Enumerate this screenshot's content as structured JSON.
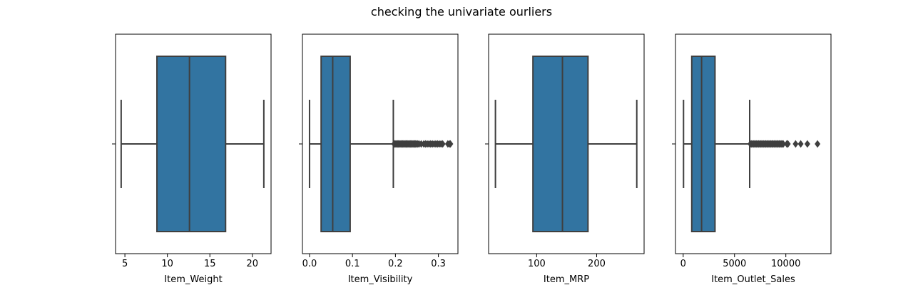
{
  "figure": {
    "suptitle": "checking the univariate ourliers"
  },
  "colors": {
    "box_fill": "#3274a1",
    "line": "#3f3f3f",
    "axes": "#000000",
    "background": "#ffffff"
  },
  "chart_data": [
    {
      "type": "box",
      "xlabel": "Item_Weight",
      "xlim": [
        3.9,
        22.2
      ],
      "xticks": [
        5,
        10,
        15,
        20
      ],
      "xtick_labels": [
        "5",
        "10",
        "15",
        "20"
      ],
      "whisker_low": 4.56,
      "q1": 8.77,
      "median": 12.6,
      "q3": 16.85,
      "whisker_high": 21.35,
      "outliers": []
    },
    {
      "type": "box",
      "xlabel": "Item_Visibility",
      "xlim": [
        -0.0165,
        0.3455
      ],
      "xticks": [
        0.0,
        0.1,
        0.2,
        0.3
      ],
      "xtick_labels": [
        "0.0",
        "0.1",
        "0.2",
        "0.3"
      ],
      "whisker_low": 0.0,
      "q1": 0.027,
      "median": 0.054,
      "q3": 0.0946,
      "whisker_high": 0.1951,
      "outliers": [
        0.197,
        0.199,
        0.201,
        0.203,
        0.205,
        0.207,
        0.209,
        0.211,
        0.213,
        0.215,
        0.217,
        0.219,
        0.221,
        0.223,
        0.225,
        0.227,
        0.229,
        0.231,
        0.233,
        0.235,
        0.237,
        0.239,
        0.241,
        0.243,
        0.245,
        0.247,
        0.249,
        0.252,
        0.255,
        0.26,
        0.266,
        0.27,
        0.274,
        0.278,
        0.282,
        0.286,
        0.29,
        0.294,
        0.298,
        0.302,
        0.306,
        0.31,
        0.322,
        0.326,
        0.328
      ]
    },
    {
      "type": "box",
      "xlabel": "Item_MRP",
      "xlim": [
        19.9,
        279.1
      ],
      "xticks": [
        100,
        200
      ],
      "xtick_labels": [
        "100",
        "200"
      ],
      "whisker_low": 31.29,
      "q1": 93.8,
      "median": 143.0,
      "q3": 185.6,
      "whisker_high": 266.9,
      "outliers": []
    },
    {
      "type": "box",
      "xlabel": "Item_Outlet_Sales",
      "xlim": [
        -750,
        14400
      ],
      "xticks": [
        0,
        5000,
        10000
      ],
      "xtick_labels": [
        "0",
        "5000",
        "10000"
      ],
      "whisker_low": 33,
      "q1": 834,
      "median": 1794,
      "q3": 3101,
      "whisker_high": 6478,
      "outliers": [
        6550,
        6650,
        6750,
        6850,
        6950,
        7050,
        7150,
        7250,
        7350,
        7450,
        7550,
        7650,
        7750,
        7850,
        7950,
        8050,
        8150,
        8250,
        8350,
        8450,
        8550,
        8650,
        8750,
        8850,
        8950,
        9050,
        9150,
        9250,
        9350,
        9450,
        9550,
        9650,
        9750,
        10100,
        10200,
        10950,
        11450,
        12100,
        13087
      ]
    }
  ]
}
